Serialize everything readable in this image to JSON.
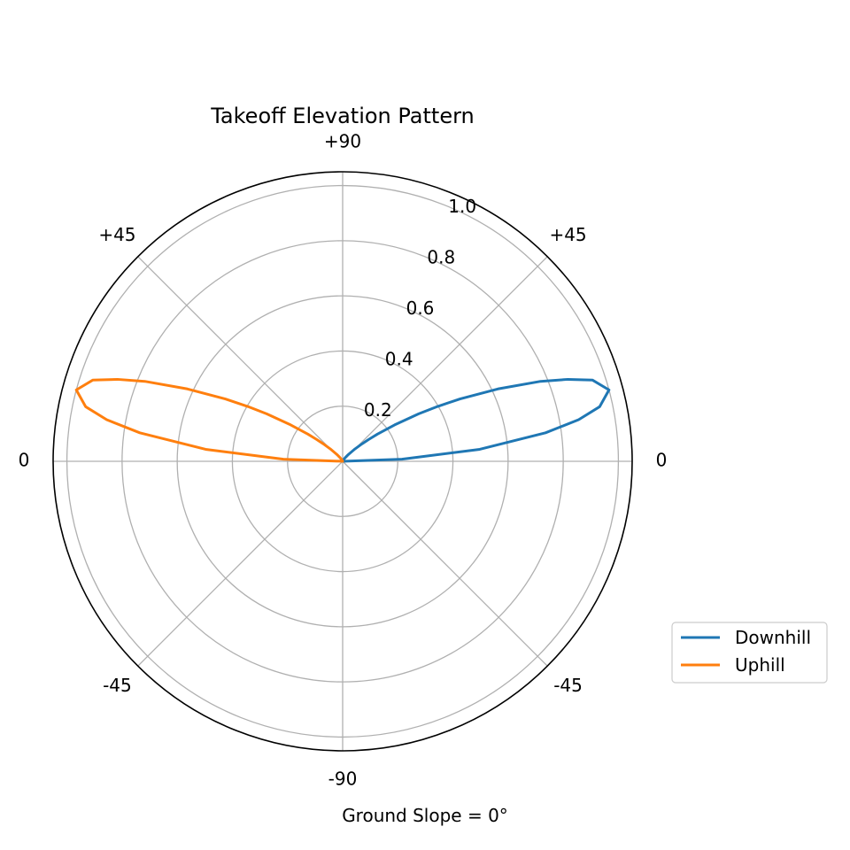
{
  "chart_data": {
    "type": "line",
    "projection": "polar",
    "title": "Takeoff Elevation Pattern",
    "xlabel": "Ground Slope = 0°",
    "radial_ticks": [
      0.2,
      0.4,
      0.6,
      0.8,
      1.0
    ],
    "radial_tick_labels": [
      "0.2",
      "0.4",
      "0.6",
      "0.8",
      "1.0"
    ],
    "rlim": [
      0,
      1.05
    ],
    "angular_ticks_deg": [
      0,
      45,
      90,
      135,
      180,
      225,
      270,
      315
    ],
    "angular_tick_labels": [
      "0",
      "+45",
      "+90",
      "+45",
      "0",
      "-45",
      "-90",
      "-45"
    ],
    "grid": true,
    "legend_position": "lower right, outside",
    "series": [
      {
        "name": "Downhill",
        "color": "#1f77b4",
        "angle_deg": [
          0,
          2,
          5,
          8,
          10,
          12,
          15,
          18,
          20,
          22,
          25,
          28,
          30,
          32,
          35,
          38,
          40,
          42,
          45,
          50,
          55,
          60,
          70,
          80,
          90
        ],
        "r": [
          0.0,
          0.215,
          0.499,
          0.743,
          0.869,
          0.953,
          1.0,
          0.953,
          0.869,
          0.774,
          0.621,
          0.482,
          0.398,
          0.325,
          0.23,
          0.16,
          0.123,
          0.095,
          0.064,
          0.032,
          0.016,
          0.008,
          0.002,
          0.0005,
          0.0
        ]
      },
      {
        "name": "Uphill",
        "color": "#ff7f0e",
        "angle_deg": [
          180,
          178,
          175,
          172,
          170,
          168,
          165,
          162,
          160,
          158,
          155,
          152,
          150,
          148,
          145,
          142,
          140,
          138,
          135,
          130,
          125,
          120,
          110,
          100,
          90
        ],
        "r": [
          0.0,
          0.215,
          0.499,
          0.743,
          0.869,
          0.953,
          1.0,
          0.953,
          0.869,
          0.774,
          0.621,
          0.482,
          0.398,
          0.325,
          0.23,
          0.16,
          0.123,
          0.095,
          0.064,
          0.032,
          0.016,
          0.008,
          0.002,
          0.0005,
          0.0
        ]
      }
    ]
  }
}
